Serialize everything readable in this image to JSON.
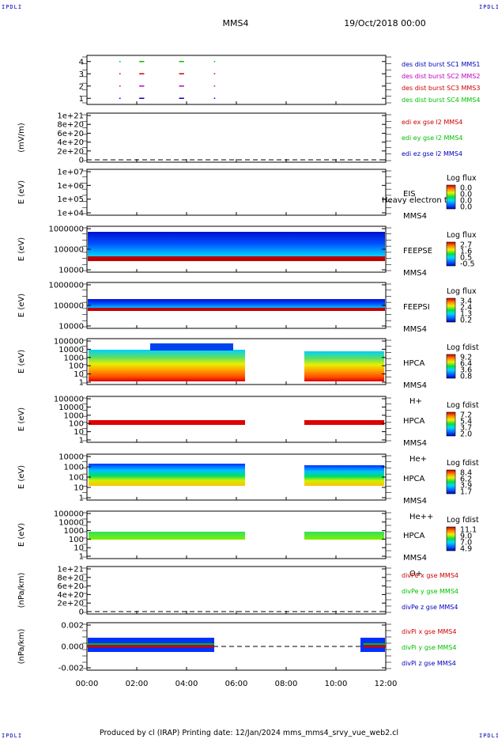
{
  "corner_label": "IPDLI",
  "title": "MMS4",
  "date": "19/Oct/2018 00:00",
  "footer": {
    "text": "Produced by cl (IRAP)   Printing date: 12/Jan/2024   mms_mms4_srvy_vue_web2.cl"
  },
  "time_axis": {
    "range_hours": [
      0,
      12
    ],
    "tick_labels": [
      "00:00",
      "02:00",
      "04:00",
      "06:00",
      "08:00",
      "10:00",
      "12:00"
    ]
  },
  "colors": {
    "red": "#d00000",
    "green": "#00c000",
    "blue": "#0000c0",
    "magenta": "#c000c0"
  },
  "chart_data": [
    {
      "panel": "des-burst",
      "type": "scatter",
      "ylim": [
        0.5,
        4.5
      ],
      "ytick_labels": [
        "1",
        "2",
        "3",
        "4"
      ],
      "series": [
        {
          "name": "des dist burst SC1 MMS1",
          "color": "#0000c0",
          "y": 1,
          "x_hours": [
            1.3,
            2.1,
            3.7,
            5.1
          ],
          "seg_hours": [
            0.05,
            0.2,
            0.2,
            0.05
          ]
        },
        {
          "name": "des dist burst SC2 MMS2",
          "color": "#c000c0",
          "y": 2,
          "x_hours": [
            1.3,
            2.1,
            3.7,
            5.1
          ],
          "seg_hours": [
            0.05,
            0.2,
            0.2,
            0.05
          ]
        },
        {
          "name": "des dist burst SC3 MMS3",
          "color": "#d00000",
          "y": 3,
          "x_hours": [
            1.3,
            2.1,
            3.7,
            5.1
          ],
          "seg_hours": [
            0.05,
            0.2,
            0.2,
            0.05
          ]
        },
        {
          "name": "des dist burst SC4 MMS4",
          "color": "#00c000",
          "y": 4,
          "x_hours": [
            1.3,
            2.1,
            3.7,
            5.1
          ],
          "seg_hours": [
            0.05,
            0.2,
            0.2,
            0.05
          ]
        }
      ]
    },
    {
      "panel": "edi",
      "type": "line",
      "ylabel": "(mV/m)",
      "ylim": [
        0,
        1e+21
      ],
      "ytick_labels": [
        "0",
        "2e+20",
        "4e+20",
        "6e+20",
        "8e+20",
        "1e+21"
      ],
      "zero_line": true,
      "series": [
        {
          "name": "edi ex gse l2 MMS4",
          "color": "#d00000"
        },
        {
          "name": "edi ey gse l2 MMS4",
          "color": "#00c000"
        },
        {
          "name": "edi ez gse l2 MMS4",
          "color": "#0000c0"
        }
      ]
    },
    {
      "panel": "eis",
      "type": "heatmap",
      "ylabel": "E (eV)",
      "ylim": [
        10000.0,
        10000000.0
      ],
      "yscale": "log",
      "ytick_labels": [
        "1e+04",
        "1e+05",
        "1e+06",
        "1e+07"
      ],
      "instrument": "EIS",
      "spacecraft": "MMS4",
      "overlay_text": "Heavy electron tof",
      "colorbar": {
        "title": "Log flux",
        "tick_labels": [
          "0.0",
          "0.0",
          "0.0",
          "0.0"
        ]
      }
    },
    {
      "panel": "feeps-e",
      "type": "heatmap",
      "ylabel": "E (eV)",
      "ylim": [
        10000,
        1000000
      ],
      "yscale": "log",
      "ytick_labels": [
        "10000",
        "100000",
        "1000000"
      ],
      "instrument": "FEEPSE",
      "spacecraft": "MMS4",
      "colorbar": {
        "title": "Log flux",
        "tick_labels": [
          "2.7",
          "1.6",
          "0.5",
          "-0.5"
        ]
      }
    },
    {
      "panel": "feeps-i",
      "type": "heatmap",
      "ylabel": "E (eV)",
      "ylim": [
        10000,
        1000000
      ],
      "yscale": "log",
      "ytick_labels": [
        "10000",
        "100000",
        "1000000"
      ],
      "instrument": "FEEPSI",
      "spacecraft": "MMS4",
      "colorbar": {
        "title": "Log flux",
        "tick_labels": [
          "3.4",
          "2.4",
          "1.3",
          "0.2"
        ]
      }
    },
    {
      "panel": "hpca-h",
      "type": "heatmap",
      "ylabel": "E (eV)",
      "ylim": [
        1,
        100000
      ],
      "yscale": "log",
      "ytick_labels": [
        "1",
        "10",
        "100",
        "1000",
        "10000",
        "100000"
      ],
      "instrument": "HPCA",
      "spacecraft": "MMS4",
      "species": "H+",
      "data_intervals_hours": [
        [
          0.0,
          6.35
        ],
        [
          8.75,
          12.0
        ]
      ],
      "colorbar": {
        "title": "Log fdist",
        "tick_labels": [
          "9.2",
          "6.4",
          "3.6",
          "0.8"
        ]
      }
    },
    {
      "panel": "hpca-he",
      "type": "heatmap",
      "ylabel": "E (eV)",
      "ylim": [
        1,
        100000
      ],
      "yscale": "log",
      "ytick_labels": [
        "1",
        "10",
        "100",
        "1000",
        "10000",
        "100000"
      ],
      "instrument": "HPCA",
      "spacecraft": "MMS4",
      "species": "He+",
      "data_intervals_hours": [
        [
          0.0,
          6.35
        ],
        [
          8.75,
          12.0
        ]
      ],
      "colorbar": {
        "title": "Log fdist",
        "tick_labels": [
          "7.2",
          "5.4",
          "3.7",
          "2.0"
        ]
      }
    },
    {
      "panel": "hpca-hepp",
      "type": "heatmap",
      "ylabel": "E (eV)",
      "ylim": [
        1,
        10000
      ],
      "yscale": "log",
      "ytick_labels": [
        "1",
        "10",
        "100",
        "1000",
        "10000"
      ],
      "instrument": "HPCA",
      "spacecraft": "MMS4",
      "species": "He++",
      "data_intervals_hours": [
        [
          0.0,
          6.35
        ],
        [
          8.75,
          12.0
        ]
      ],
      "colorbar": {
        "title": "Log fdist",
        "tick_labels": [
          "8.4",
          "6.2",
          "3.9",
          "1.7"
        ]
      }
    },
    {
      "panel": "hpca-o",
      "type": "heatmap",
      "ylabel": "E (eV)",
      "ylim": [
        1,
        100000
      ],
      "yscale": "log",
      "ytick_labels": [
        "1",
        "10",
        "100",
        "1000",
        "10000",
        "100000"
      ],
      "instrument": "HPCA",
      "spacecraft": "MMS4",
      "species": "O+",
      "data_intervals_hours": [
        [
          0.0,
          6.35
        ],
        [
          8.75,
          12.0
        ]
      ],
      "colorbar": {
        "title": "Log fdist",
        "tick_labels": [
          "11.1",
          "9.0",
          "7.0",
          "4.9"
        ]
      }
    },
    {
      "panel": "divpe",
      "type": "line",
      "ylabel": "(nPa/km)",
      "ylim": [
        0,
        1e+21
      ],
      "ytick_labels": [
        "0",
        "2e+20",
        "4e+20",
        "6e+20",
        "8e+20",
        "1e+21"
      ],
      "zero_line": true,
      "series": [
        {
          "name": "divPe x gse MMS4",
          "color": "#d00000"
        },
        {
          "name": "divPe y gse MMS4",
          "color": "#00c000"
        },
        {
          "name": "divPe z gse MMS4",
          "color": "#0000c0"
        }
      ]
    },
    {
      "panel": "divpi",
      "type": "line",
      "ylabel": "(nPa/km)",
      "ylim": [
        -0.003,
        0.003
      ],
      "ytick_labels": [
        "-0.002",
        "0.000",
        "0.002"
      ],
      "zero_line": true,
      "data_intervals_hours": [
        [
          0.0,
          5.1
        ],
        [
          11.1,
          12.0
        ]
      ],
      "series": [
        {
          "name": "divPi x gse MMS4",
          "color": "#d00000"
        },
        {
          "name": "divPi y gse MMS4",
          "color": "#00c000"
        },
        {
          "name": "divPi z gse MMS4",
          "color": "#0000c0"
        }
      ]
    }
  ]
}
